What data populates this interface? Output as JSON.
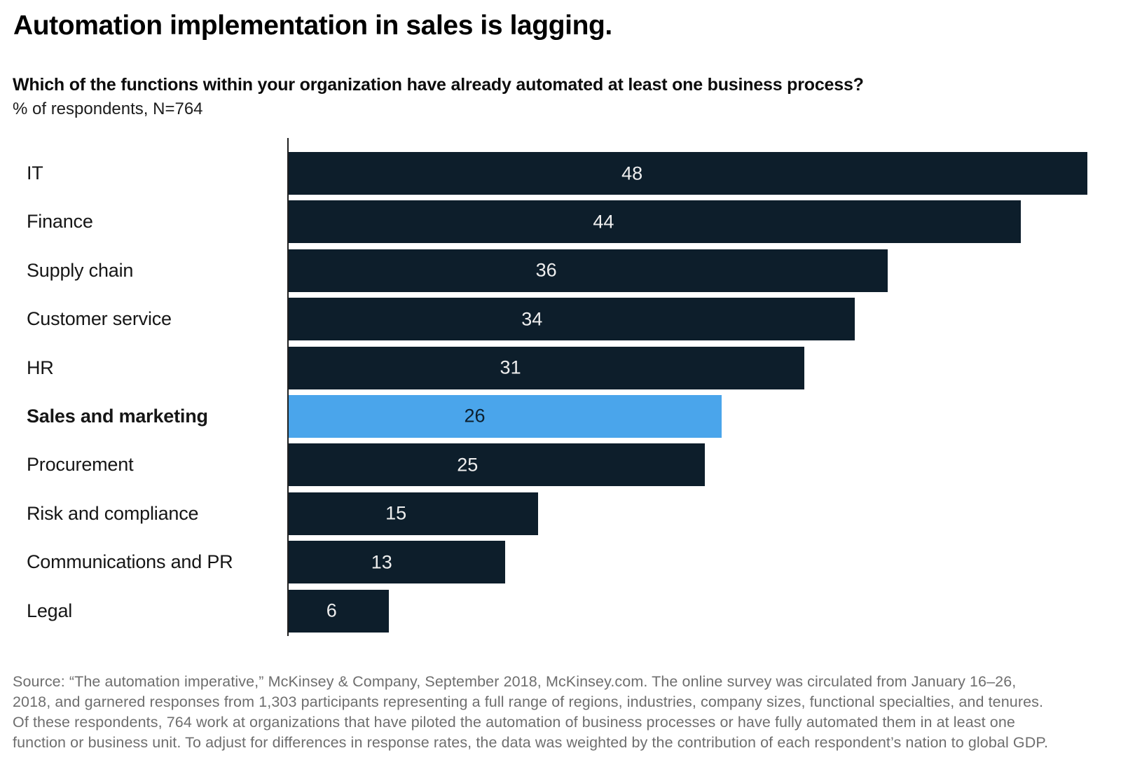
{
  "header": {
    "title": "Automation implementation in sales is lagging.",
    "question": "Which of the functions within your organization have already automated at least one business process?",
    "unit_label": "% of respondents, N=764"
  },
  "chart_data": {
    "type": "bar",
    "orientation": "horizontal",
    "title": "Automation implementation in sales is lagging.",
    "xlabel": "% of respondents",
    "categories": [
      "IT",
      "Finance",
      "Supply chain",
      "Customer service",
      "HR",
      "Sales and marketing",
      "Procurement",
      "Risk and compliance",
      "Communications and PR",
      "Legal"
    ],
    "values": [
      48,
      44,
      36,
      34,
      31,
      26,
      25,
      15,
      13,
      6
    ],
    "highlight_index": 5,
    "highlight_category": "Sales and marketing",
    "xlim": [
      0,
      50
    ],
    "grid": false,
    "legend": "none",
    "bar_color": "#0d1e2b",
    "highlight_color": "#4aa5eb",
    "value_label_color": "#eeeeee",
    "highlight_value_label_color": "#0d1f2d"
  },
  "footer": {
    "source": "Source: “The automation imperative,” McKinsey & Company, September 2018, McKinsey.com. The online survey was circulated from January 16–26, 2018, and garnered responses from 1,303 participants representing a full range of regions, industries, company sizes, functional specialties, and tenures. Of these respondents, 764 work at organizations that have piloted the automation of business processes or have fully automated them in at least one function or business unit. To adjust for differences in response rates, the data was weighted by the contribution of each respondent’s nation to global GDP."
  }
}
